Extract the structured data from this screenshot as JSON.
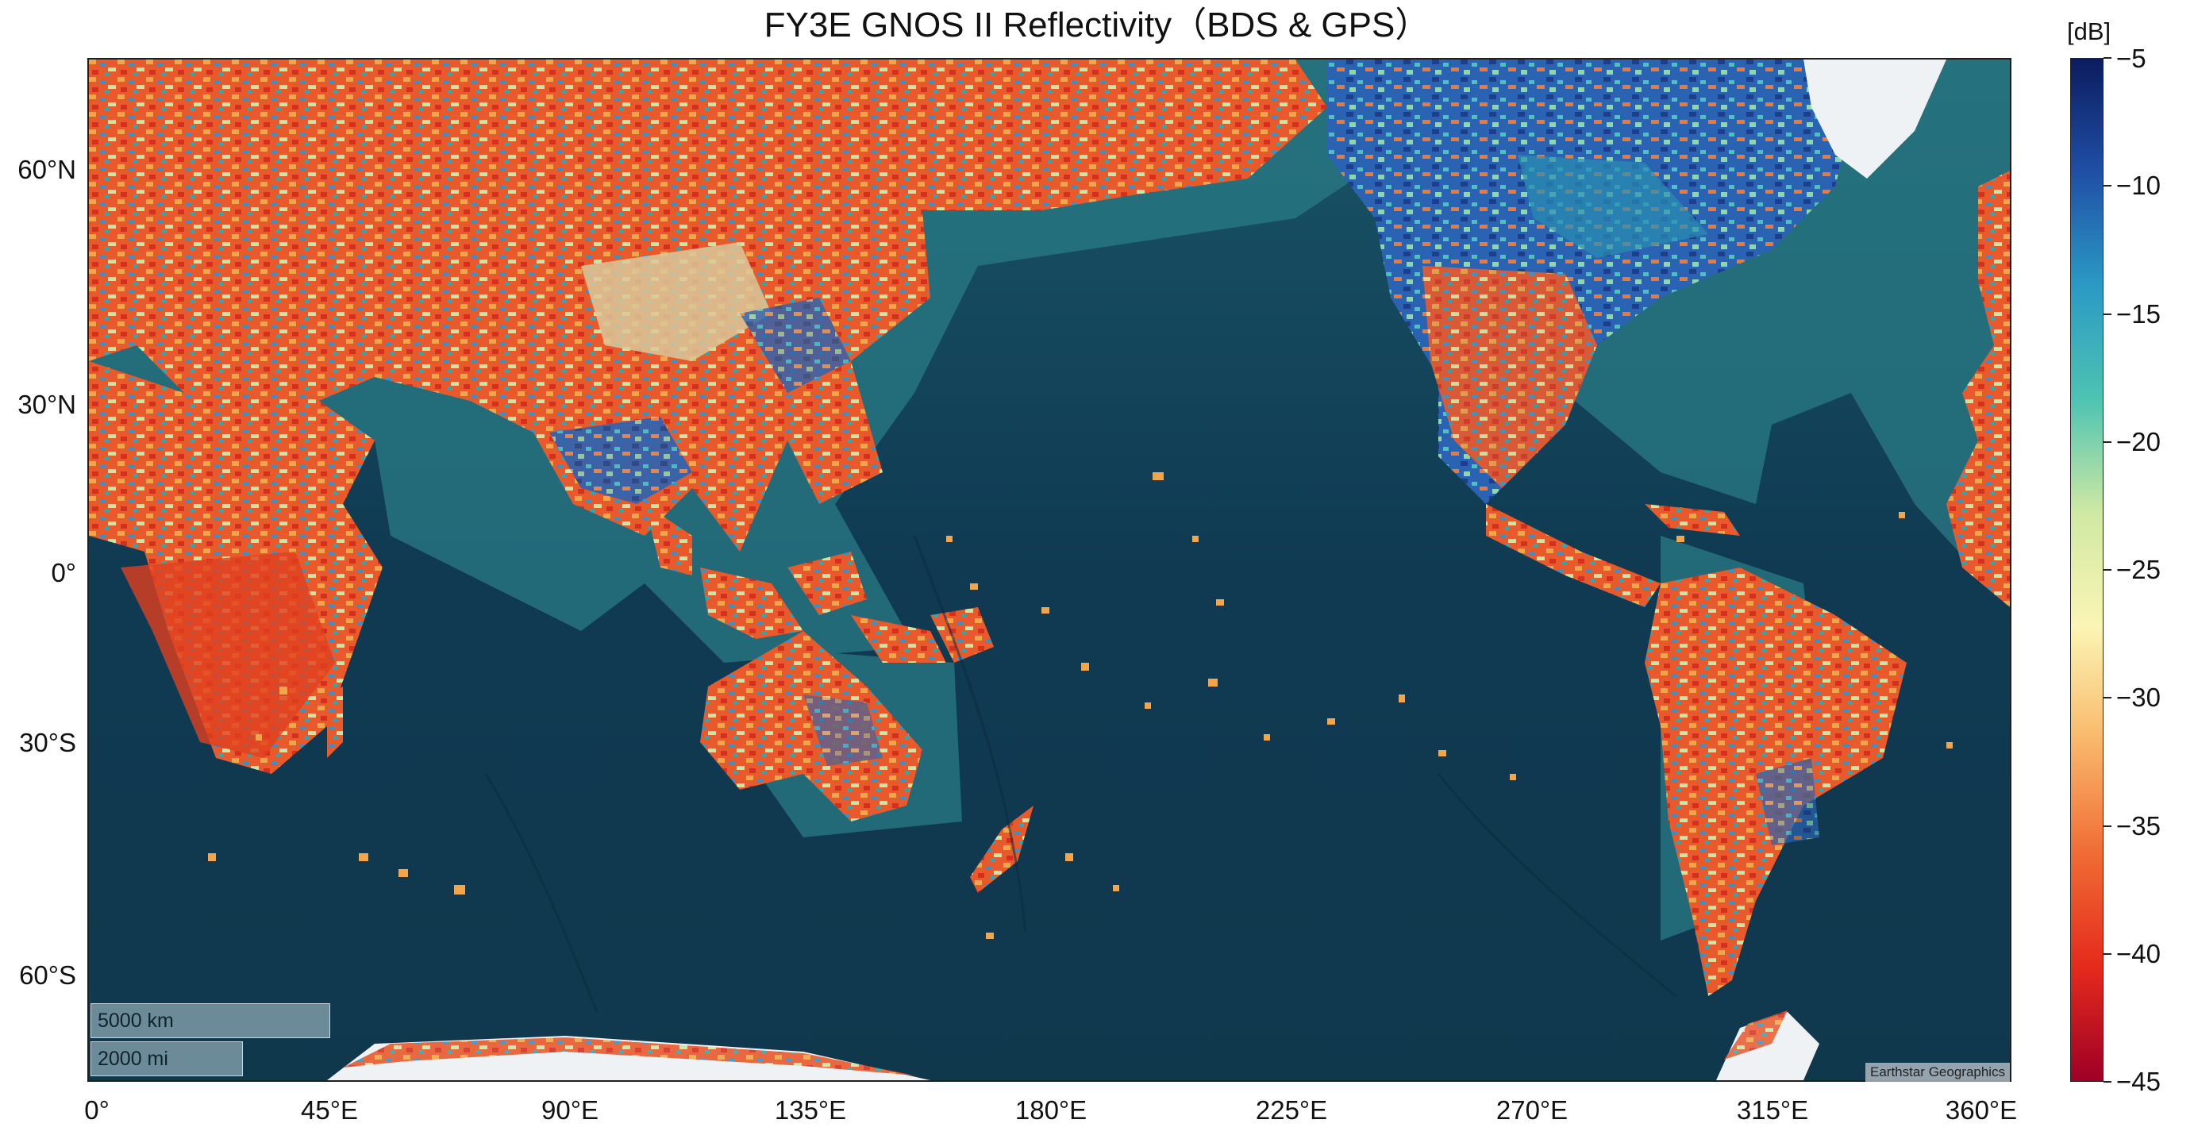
{
  "title": "FY3E GNOS II Reflectivity（BDS & GPS）",
  "axes": {
    "lat_ticks": [
      {
        "value": 60,
        "label": "60°N"
      },
      {
        "value": 30,
        "label": "30°N"
      },
      {
        "value": 0,
        "label": "0°"
      },
      {
        "value": -30,
        "label": "30°S"
      },
      {
        "value": -60,
        "label": "60°S"
      }
    ],
    "lon_ticks": [
      {
        "value": 0,
        "label": "0°"
      },
      {
        "value": 45,
        "label": "45°E"
      },
      {
        "value": 90,
        "label": "90°E"
      },
      {
        "value": 135,
        "label": "135°E"
      },
      {
        "value": 180,
        "label": "180°E"
      },
      {
        "value": 225,
        "label": "225°E"
      },
      {
        "value": 270,
        "label": "270°E"
      },
      {
        "value": 315,
        "label": "315°E"
      },
      {
        "value": 360,
        "label": "360°E"
      }
    ]
  },
  "colorbar": {
    "unit": "[dB]",
    "min": -45,
    "max": -5,
    "ticks": [
      {
        "value": -5,
        "label": "−5"
      },
      {
        "value": -10,
        "label": "−10"
      },
      {
        "value": -15,
        "label": "−15"
      },
      {
        "value": -20,
        "label": "−20"
      },
      {
        "value": -25,
        "label": "−25"
      },
      {
        "value": -30,
        "label": "−30"
      },
      {
        "value": -35,
        "label": "−35"
      },
      {
        "value": -40,
        "label": "−40"
      },
      {
        "value": -45,
        "label": "−45"
      }
    ],
    "gradient_top_to_bottom": [
      "#0b1c5e",
      "#1f4fa6",
      "#2a9ac4",
      "#4dc3b2",
      "#cfe9a3",
      "#fbf5b4",
      "#f9b86a",
      "#f06c34",
      "#e42a1c",
      "#9e0026"
    ]
  },
  "scalebar": {
    "km_label": "5000 km",
    "mi_label": "2000 mi"
  },
  "attribution": "Earthstar Geographics",
  "colors": {
    "ocean_deep": "#0f3a52",
    "ocean_shelf": "#2a7e8a",
    "land_high": "#e8482a",
    "land_low": "#1f58a8",
    "ice": "#eef2f5"
  }
}
